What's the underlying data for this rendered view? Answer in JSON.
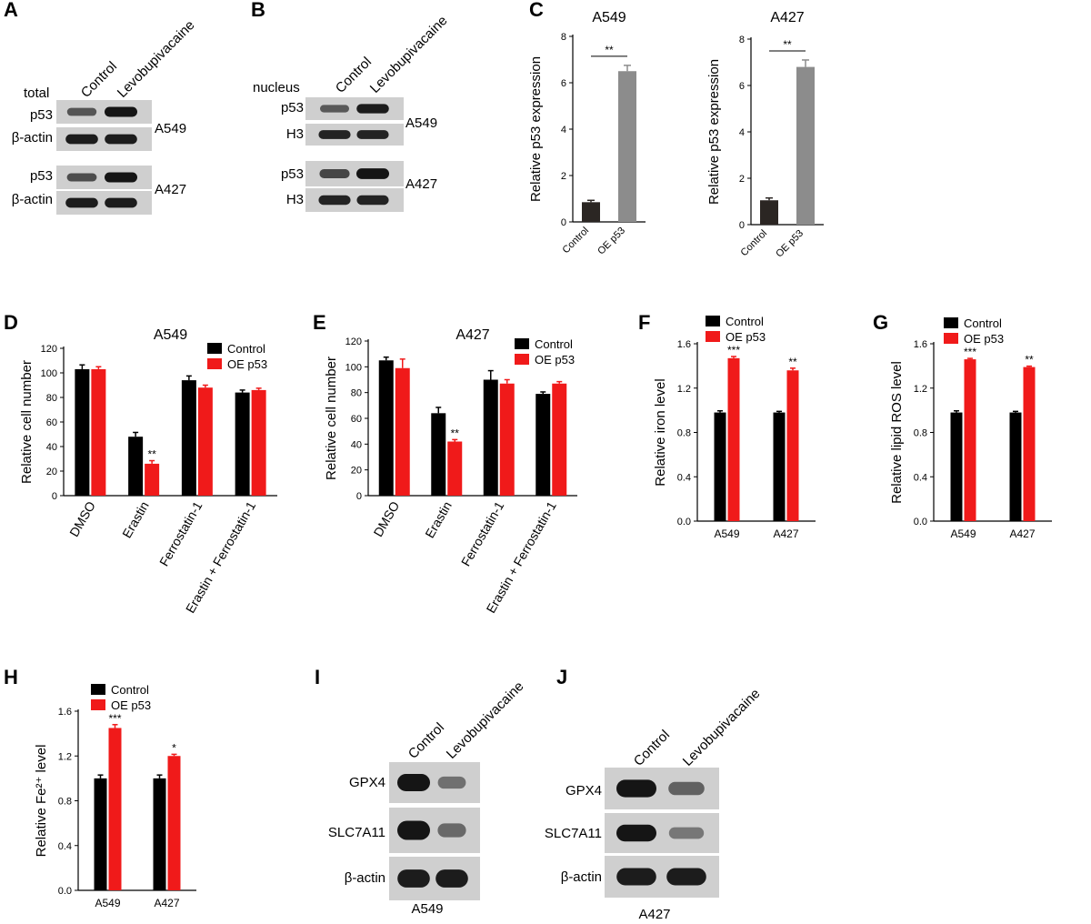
{
  "colors": {
    "black": "#000000",
    "red": "#f01a1a",
    "dark": "#2b2623",
    "gray": "#8c8c8c",
    "blot_bg": "#cfcfcf",
    "band": "#151515"
  },
  "panels": {
    "A": {
      "label": "A",
      "lanes": [
        "Control",
        "Levobupivacaine"
      ],
      "header": "total",
      "rows": [
        "p53",
        "β-actin",
        "p53",
        "β-actin"
      ],
      "cells": [
        "A549",
        "A427"
      ],
      "band_intensity": [
        [
          0.55,
          1.0
        ],
        [
          0.95,
          0.95
        ],
        [
          0.6,
          1.0
        ],
        [
          0.95,
          0.95
        ]
      ]
    },
    "B": {
      "label": "B",
      "lanes": [
        "Control",
        "Levobupivacaine"
      ],
      "header": "nucleus",
      "rows": [
        "p53",
        "H3",
        "p53",
        "H3"
      ],
      "cells": [
        "A549",
        "A427"
      ],
      "band_intensity": [
        [
          0.5,
          0.95
        ],
        [
          0.9,
          0.9
        ],
        [
          0.65,
          1.0
        ],
        [
          0.9,
          0.9
        ]
      ]
    },
    "C": {
      "label": "C"
    },
    "D": {
      "label": "D"
    },
    "E": {
      "label": "E"
    },
    "F": {
      "label": "F"
    },
    "G": {
      "label": "G"
    },
    "H": {
      "label": "H"
    },
    "I": {
      "label": "I",
      "lanes": [
        "Control",
        "Levobupivacaine"
      ],
      "rows": [
        "GPX4",
        "SLC7A11",
        "β-actin"
      ],
      "cell": "A549",
      "band_intensity": [
        [
          1.0,
          0.35
        ],
        [
          1.0,
          0.4
        ],
        [
          0.95,
          0.95
        ]
      ]
    },
    "J": {
      "label": "J",
      "lanes": [
        "Control",
        "Levobupivacaine"
      ],
      "rows": [
        "GPX4",
        "SLC7A11",
        "β-actin"
      ],
      "cell": "A427",
      "band_intensity": [
        [
          1.0,
          0.45
        ],
        [
          1.0,
          0.3
        ],
        [
          0.95,
          0.95
        ]
      ]
    }
  },
  "chart_data": [
    {
      "id": "C1",
      "type": "bar",
      "title": "A549",
      "ylabel": "Relative p53 expression",
      "categories": [
        "Control",
        "OE p53"
      ],
      "values": [
        0.85,
        6.5
      ],
      "errors": [
        0.08,
        0.25
      ],
      "ylim": [
        0,
        8
      ],
      "yticks": [
        0,
        2,
        4,
        6,
        8
      ],
      "significance": "**"
    },
    {
      "id": "C2",
      "type": "bar",
      "title": "A427",
      "ylabel": "Relative p53 expression",
      "categories": [
        "Control",
        "OE p53"
      ],
      "values": [
        1.05,
        6.8
      ],
      "errors": [
        0.1,
        0.3
      ],
      "ylim": [
        0,
        8
      ],
      "yticks": [
        0,
        2,
        4,
        6,
        8
      ],
      "significance": "**"
    },
    {
      "id": "D",
      "type": "bar",
      "title": "A549",
      "ylabel": "Relative cell number",
      "categories": [
        "DMSO",
        "Erastin",
        "Ferrostatin-1",
        "Erastin + Ferrostatin-1"
      ],
      "series": [
        {
          "name": "Control",
          "values": [
            103,
            48,
            94,
            84
          ],
          "errors": [
            3.5,
            3.5,
            3.5,
            2
          ]
        },
        {
          "name": "OE p53",
          "values": [
            103,
            26,
            88,
            86
          ],
          "errors": [
            2,
            2.5,
            2,
            1.5
          ]
        }
      ],
      "annotations": [
        {
          "category": 1,
          "series": 1,
          "text": "**"
        }
      ],
      "ylim": [
        0,
        120
      ],
      "yticks": [
        0,
        20,
        40,
        60,
        80,
        100,
        120
      ],
      "legend": "top-right"
    },
    {
      "id": "E",
      "type": "bar",
      "title": "A427",
      "ylabel": "Relative cell number",
      "categories": [
        "DMSO",
        "Erastin",
        "Ferrostatin-1",
        "Erastin + Ferrostatin-1"
      ],
      "series": [
        {
          "name": "Control",
          "values": [
            105,
            64,
            90,
            79
          ],
          "errors": [
            2.5,
            4.5,
            7,
            1.5
          ]
        },
        {
          "name": "OE p53",
          "values": [
            99,
            42,
            87,
            87
          ],
          "errors": [
            7,
            1.5,
            3,
            1.5
          ]
        }
      ],
      "annotations": [
        {
          "category": 1,
          "series": 1,
          "text": "**"
        }
      ],
      "ylim": [
        0,
        120
      ],
      "yticks": [
        0,
        20,
        40,
        60,
        80,
        100,
        120
      ],
      "legend": "top-right"
    },
    {
      "id": "F",
      "type": "bar",
      "ylabel": "Relative iron level",
      "categories": [
        "A549",
        "A427"
      ],
      "series": [
        {
          "name": "Control",
          "values": [
            0.98,
            0.98
          ],
          "errors": [
            0.015,
            0.01
          ]
        },
        {
          "name": "OE p53",
          "values": [
            1.47,
            1.36
          ],
          "errors": [
            0.015,
            0.02
          ]
        }
      ],
      "annotations": [
        {
          "category": 0,
          "series": 1,
          "text": "***"
        },
        {
          "category": 1,
          "series": 1,
          "text": "**"
        }
      ],
      "ylim": [
        0,
        1.6
      ],
      "yticks": [
        0.0,
        0.4,
        0.8,
        1.2,
        1.6
      ],
      "legend": "top"
    },
    {
      "id": "G",
      "type": "bar",
      "ylabel": "Relative lipid ROS level",
      "categories": [
        "A549",
        "A427"
      ],
      "series": [
        {
          "name": "Control",
          "values": [
            0.98,
            0.98
          ],
          "errors": [
            0.015,
            0.01
          ]
        },
        {
          "name": "OE p53",
          "values": [
            1.46,
            1.39
          ],
          "errors": [
            0.008,
            0.008
          ]
        }
      ],
      "annotations": [
        {
          "category": 0,
          "series": 1,
          "text": "***"
        },
        {
          "category": 1,
          "series": 1,
          "text": "**"
        }
      ],
      "ylim": [
        0,
        1.6
      ],
      "yticks": [
        0.0,
        0.4,
        0.8,
        1.2,
        1.6
      ],
      "legend": "top"
    },
    {
      "id": "H",
      "type": "bar",
      "ylabel": "Relative Fe²⁺ level",
      "categories": [
        "A549",
        "A427"
      ],
      "series": [
        {
          "name": "Control",
          "values": [
            1.0,
            1.0
          ],
          "errors": [
            0.03,
            0.03
          ]
        },
        {
          "name": "OE p53",
          "values": [
            1.45,
            1.2
          ],
          "errors": [
            0.03,
            0.015
          ]
        }
      ],
      "annotations": [
        {
          "category": 0,
          "series": 1,
          "text": "***"
        },
        {
          "category": 1,
          "series": 1,
          "text": "*"
        }
      ],
      "ylim": [
        0,
        1.6
      ],
      "yticks": [
        0.0,
        0.4,
        0.8,
        1.2,
        1.6
      ],
      "legend": "top"
    }
  ]
}
